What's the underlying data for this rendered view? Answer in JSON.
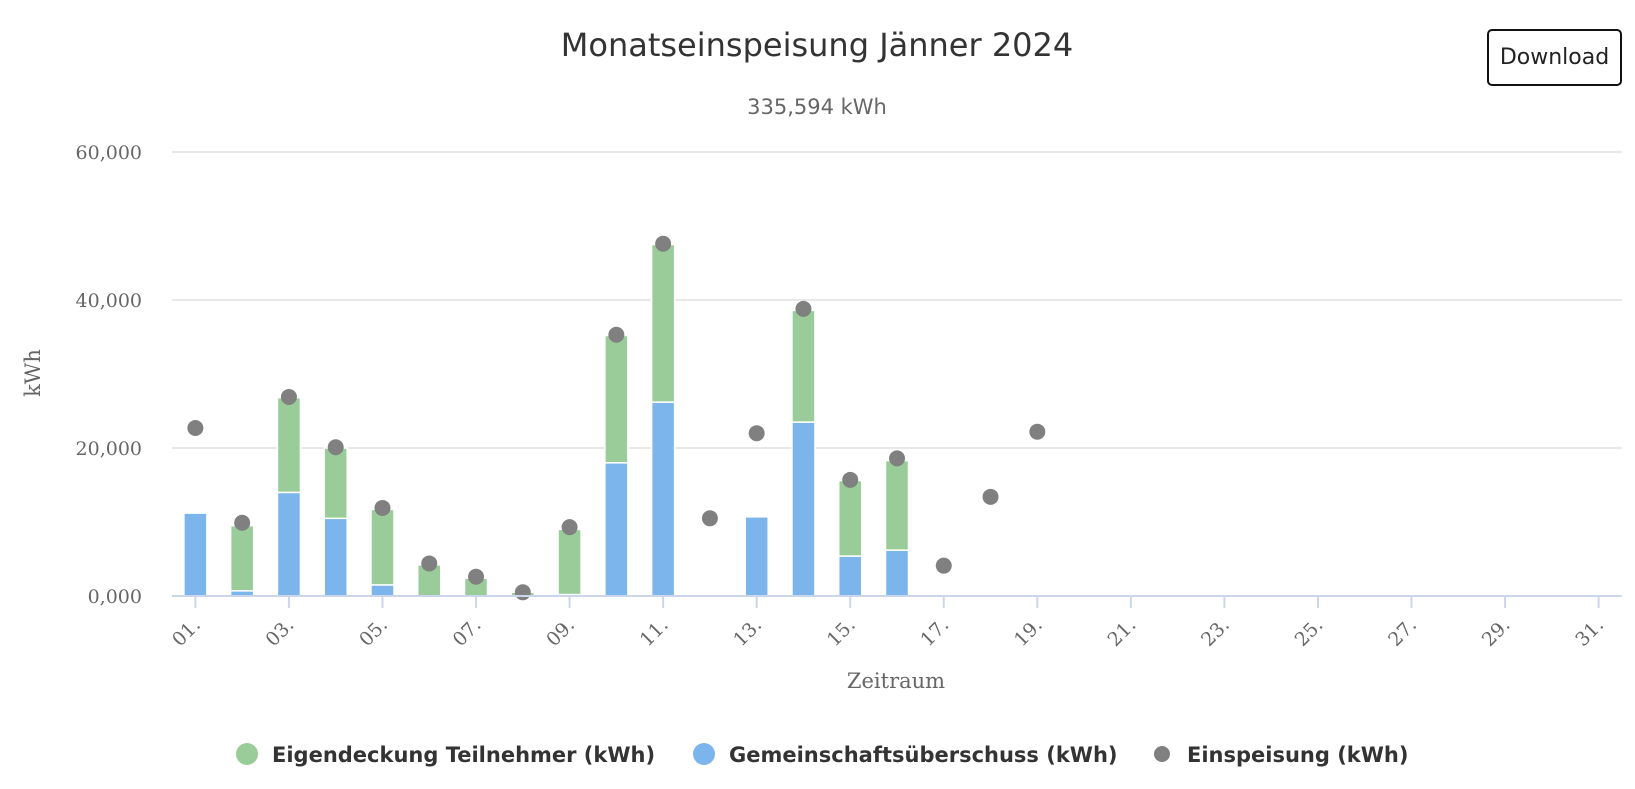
{
  "toolbar": {
    "download_label": "Download"
  },
  "chart_data": {
    "type": "bar",
    "title": "Monatseinspeisung Jänner 2024",
    "subtitle": "335,594 kWh",
    "xlabel": "Zeitraum",
    "ylabel": "kWh",
    "ylim": [
      0,
      60
    ],
    "yticks": [
      0,
      20,
      40,
      60
    ],
    "ytick_labels": [
      "0,000",
      "20,000",
      "40,000",
      "60,000"
    ],
    "grid": true,
    "legend_position": "bottom",
    "x": [
      "01.",
      "02.",
      "03.",
      "04.",
      "05.",
      "06.",
      "07.",
      "08.",
      "09.",
      "10.",
      "11.",
      "12.",
      "13.",
      "14.",
      "15.",
      "16.",
      "17.",
      "18.",
      "19.",
      "20.",
      "21.",
      "22.",
      "23.",
      "24.",
      "25.",
      "26.",
      "27.",
      "28.",
      "29.",
      "30.",
      "31."
    ],
    "xtick_labels": [
      "01.",
      "03.",
      "05.",
      "07.",
      "09.",
      "11.",
      "13.",
      "15.",
      "17.",
      "19.",
      "21.",
      "23.",
      "25.",
      "27.",
      "29.",
      "31."
    ],
    "series": [
      {
        "name": "Gemeinschaftsüberschuss (kWh)",
        "kind": "bar-stacked",
        "color": "#7cb5ec",
        "values": [
          11.2,
          0.7,
          14.0,
          10.5,
          1.5,
          0,
          0,
          0,
          0.2,
          18.0,
          26.2,
          0,
          10.7,
          23.5,
          5.4,
          6.2,
          0,
          0,
          0,
          0,
          0,
          0,
          0,
          0,
          0,
          0,
          0,
          0,
          0,
          0,
          0
        ]
      },
      {
        "name": "Eigendeckung Teilnehmer (kWh)",
        "kind": "bar-stacked",
        "color": "#99cc99",
        "values": [
          0,
          8.8,
          12.8,
          9.5,
          10.2,
          4.2,
          2.4,
          0.5,
          8.8,
          17.2,
          21.3,
          0,
          0,
          15.1,
          10.2,
          12.1,
          0,
          0,
          0,
          0,
          0,
          0,
          0,
          0,
          0,
          0,
          0,
          0,
          0,
          0,
          0
        ]
      },
      {
        "name": "Einspeisung (kWh)",
        "kind": "scatter",
        "color": "#808080",
        "values": [
          22.7,
          9.9,
          26.9,
          20.1,
          11.9,
          4.4,
          2.6,
          0.5,
          9.3,
          35.3,
          47.6,
          10.5,
          22.0,
          38.8,
          15.7,
          18.6,
          4.1,
          13.4,
          22.2,
          null,
          null,
          null,
          null,
          null,
          null,
          null,
          null,
          null,
          null,
          null,
          null
        ]
      }
    ],
    "legend_order": [
      "Eigendeckung Teilnehmer (kWh)",
      "Gemeinschaftsüberschuss (kWh)",
      "Einspeisung (kWh)"
    ]
  }
}
